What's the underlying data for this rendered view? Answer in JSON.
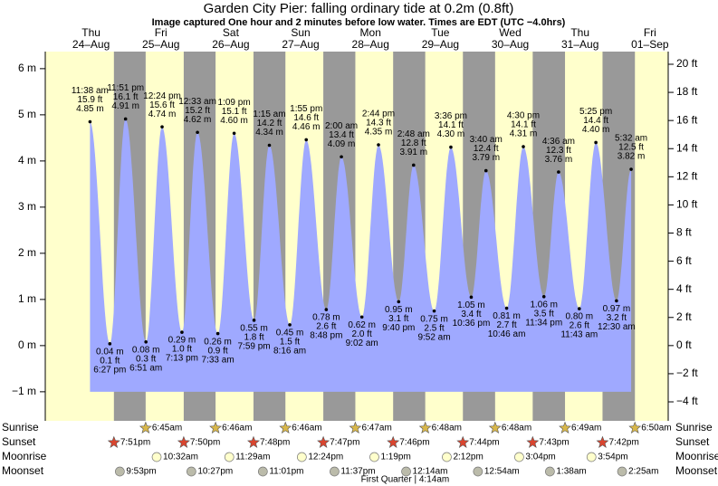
{
  "chart_data": {
    "type": "tide",
    "title": "Garden City Pier: falling  ordinary tide at 0.2m (0.8ft)",
    "subtitle": "Image captured One hour and 2 minutes before low water. Times are EDT (UTC −4.0hrs)",
    "ylim": [
      -1.63,
      6.37
    ],
    "yticks": [
      {
        "value": -1,
        "label": "−1 m"
      },
      {
        "value": 0,
        "label": "0 m"
      },
      {
        "value": 1,
        "label": "1 m"
      },
      {
        "value": 2,
        "label": "2 m"
      },
      {
        "value": 3,
        "label": "3 m"
      },
      {
        "value": 4,
        "label": "4 m"
      },
      {
        "value": 5,
        "label": "5 m"
      },
      {
        "value": 6,
        "label": "6 m"
      }
    ],
    "y2lim": [
      -5.35,
      20.9
    ],
    "y2ticks": [
      {
        "value": -4,
        "label": "−4 ft"
      },
      {
        "value": -2,
        "label": "−2 ft"
      },
      {
        "value": 0,
        "label": "0 ft"
      },
      {
        "value": 2,
        "label": "2 ft"
      },
      {
        "value": 4,
        "label": "4 ft"
      },
      {
        "value": 6,
        "label": "6 ft"
      },
      {
        "value": 8,
        "label": "8 ft"
      },
      {
        "value": 10,
        "label": "10 ft"
      },
      {
        "value": 12,
        "label": "12 ft"
      },
      {
        "value": 14,
        "label": "14 ft"
      },
      {
        "value": 16,
        "label": "16 ft"
      },
      {
        "value": 18,
        "label": "18 ft"
      },
      {
        "value": 20,
        "label": "20 ft"
      }
    ],
    "day_color": "#ffffcc",
    "night_color": "#999999",
    "tide_color": "#9fa9ff",
    "date_color": "#e00000",
    "row_labels": [
      "Sunrise",
      "Sunset",
      "Moonrise",
      "Moonset"
    ],
    "days": [
      {
        "weekday": "Thu",
        "date": "24–Aug",
        "sunset": "7:51pm",
        "moonset": "9:53pm",
        "tides": [
          {
            "time": "11:38 am",
            "m": 4.85,
            "m_label": "4.85 m",
            "ft": 15.9,
            "ft_label": "15.9 ft"
          },
          {
            "time": "6:27 pm",
            "m": 0.04,
            "m_label": "0.04 m",
            "ft": 0.1,
            "ft_label": "0.1 ft"
          },
          {
            "time": "11:51 pm",
            "m": 4.91,
            "m_label": "4.91 m",
            "ft": 16.1,
            "ft_label": "16.1 ft"
          }
        ]
      },
      {
        "weekday": "Fri",
        "date": "25–Aug",
        "sunrise": "6:45am",
        "sunset": "7:50pm",
        "moonrise": "10:32am",
        "moonset": "10:27pm",
        "tides": [
          {
            "time": "6:51 am",
            "m": 0.08,
            "m_label": "0.08 m",
            "ft": 0.3,
            "ft_label": "0.3 ft"
          },
          {
            "time": "12:24 pm",
            "m": 4.74,
            "m_label": "4.74 m",
            "ft": 15.6,
            "ft_label": "15.6 ft"
          },
          {
            "time": "7:13 pm",
            "m": 0.29,
            "m_label": "0.29 m",
            "ft": 1.0,
            "ft_label": "1.0 ft"
          }
        ]
      },
      {
        "weekday": "Sat",
        "date": "26–Aug",
        "sunrise": "6:46am",
        "sunset": "7:48pm",
        "moonrise": "11:29am",
        "moonset": "11:01pm",
        "tides": [
          {
            "time": "12:33 am",
            "m": 4.62,
            "m_label": "4.62 m",
            "ft": 15.2,
            "ft_label": "15.2 ft"
          },
          {
            "time": "7:33 am",
            "m": 0.26,
            "m_label": "0.26 m",
            "ft": 0.9,
            "ft_label": "0.9 ft"
          },
          {
            "time": "1:09 pm",
            "m": 4.6,
            "m_label": "4.60 m",
            "ft": 15.1,
            "ft_label": "15.1 ft"
          },
          {
            "time": "7:59 pm",
            "m": 0.55,
            "m_label": "0.55 m",
            "ft": 1.8,
            "ft_label": "1.8 ft"
          }
        ]
      },
      {
        "weekday": "Sun",
        "date": "27–Aug",
        "sunrise": "6:46am",
        "sunset": "7:47pm",
        "moonrise": "12:24pm",
        "moonset": "11:37pm",
        "tides": [
          {
            "time": "1:15 am",
            "m": 4.34,
            "m_label": "4.34 m",
            "ft": 14.2,
            "ft_label": "14.2 ft"
          },
          {
            "time": "8:16 am",
            "m": 0.45,
            "m_label": "0.45 m",
            "ft": 1.5,
            "ft_label": "1.5 ft"
          },
          {
            "time": "1:55 pm",
            "m": 4.46,
            "m_label": "4.46 m",
            "ft": 14.6,
            "ft_label": "14.6 ft"
          },
          {
            "time": "8:48 pm",
            "m": 0.78,
            "m_label": "0.78 m",
            "ft": 2.6,
            "ft_label": "2.6 ft"
          }
        ]
      },
      {
        "weekday": "Mon",
        "date": "28–Aug",
        "sunrise": "6:47am",
        "sunset": "7:46pm",
        "moonrise": "1:19pm",
        "tides": [
          {
            "time": "2:00 am",
            "m": 4.09,
            "m_label": "4.09 m",
            "ft": 13.4,
            "ft_label": "13.4 ft"
          },
          {
            "time": "9:02 am",
            "m": 0.62,
            "m_label": "0.62 m",
            "ft": 2.0,
            "ft_label": "2.0 ft"
          },
          {
            "time": "2:44 pm",
            "m": 4.35,
            "m_label": "4.35 m",
            "ft": 14.3,
            "ft_label": "14.3 ft"
          },
          {
            "time": "9:40 pm",
            "m": 0.95,
            "m_label": "0.95 m",
            "ft": 3.1,
            "ft_label": "3.1 ft"
          }
        ]
      },
      {
        "weekday": "Tue",
        "date": "29–Aug",
        "sunrise": "6:48am",
        "sunset": "7:44pm",
        "moonrise": "2:12pm",
        "moonset": "12:14am",
        "moon_phase": "First Quarter | 4:14am",
        "tides": [
          {
            "time": "2:48 am",
            "m": 3.91,
            "m_label": "3.91 m",
            "ft": 12.8,
            "ft_label": "12.8 ft"
          },
          {
            "time": "9:52 am",
            "m": 0.75,
            "m_label": "0.75 m",
            "ft": 2.5,
            "ft_label": "2.5 ft"
          },
          {
            "time": "3:36 pm",
            "m": 4.3,
            "m_label": "4.30 m",
            "ft": 14.1,
            "ft_label": "14.1 ft"
          },
          {
            "time": "10:36 pm",
            "m": 1.05,
            "m_label": "1.05 m",
            "ft": 3.4,
            "ft_label": "3.4 ft"
          }
        ]
      },
      {
        "weekday": "Wed",
        "date": "30–Aug",
        "sunrise": "6:48am",
        "sunset": "7:43pm",
        "moonrise": "3:04pm",
        "moonset": "12:54am",
        "tides": [
          {
            "time": "3:40 am",
            "m": 3.79,
            "m_label": "3.79 m",
            "ft": 12.4,
            "ft_label": "12.4 ft"
          },
          {
            "time": "10:46 am",
            "m": 0.81,
            "m_label": "0.81 m",
            "ft": 2.7,
            "ft_label": "2.7 ft"
          },
          {
            "time": "4:30 pm",
            "m": 4.31,
            "m_label": "4.31 m",
            "ft": 14.1,
            "ft_label": "14.1 ft"
          },
          {
            "time": "11:34 pm",
            "m": 1.06,
            "m_label": "1.06 m",
            "ft": 3.5,
            "ft_label": "3.5 ft"
          }
        ]
      },
      {
        "weekday": "Thu",
        "date": "31–Aug",
        "sunrise": "6:49am",
        "sunset": "7:42pm",
        "moonrise": "3:54pm",
        "moonset": "1:38am",
        "tides": [
          {
            "time": "4:36 am",
            "m": 3.76,
            "m_label": "3.76 m",
            "ft": 12.3,
            "ft_label": "12.3 ft"
          },
          {
            "time": "11:43 am",
            "m": 0.8,
            "m_label": "0.80 m",
            "ft": 2.6,
            "ft_label": "2.6 ft"
          },
          {
            "time": "5:25 pm",
            "m": 4.4,
            "m_label": "4.40 m",
            "ft": 14.4,
            "ft_label": "14.4 ft"
          }
        ]
      },
      {
        "weekday": "Fri",
        "date": "01–Sep",
        "sunrise": "6:50am",
        "moonset": "2:25am",
        "tides": [
          {
            "time": "12:30 am",
            "m": 0.97,
            "m_label": "0.97 m",
            "ft": 3.2,
            "ft_label": "3.2 ft"
          },
          {
            "time": "5:32 am",
            "m": 3.82,
            "m_label": "3.82 m",
            "ft": 12.5,
            "ft_label": "12.5 ft"
          }
        ]
      }
    ]
  }
}
